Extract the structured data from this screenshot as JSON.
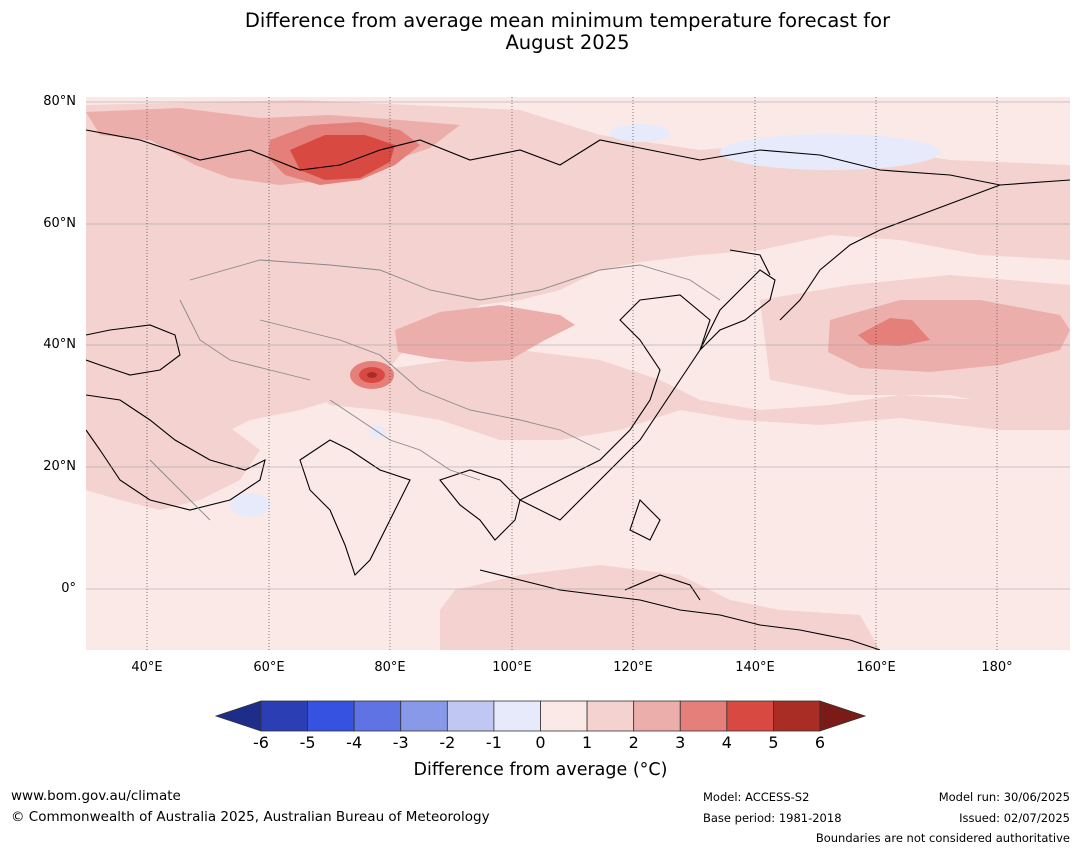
{
  "title_line1": "Difference from average mean minimum temperature forecast for",
  "title_line2": "August 2025",
  "lat_labels": [
    "80°N",
    "60°N",
    "40°N",
    "20°N",
    "0°"
  ],
  "lon_labels": [
    "40°E",
    "60°E",
    "80°E",
    "100°E",
    "120°E",
    "140°E",
    "160°E",
    "180°"
  ],
  "colorbar": {
    "ticks": [
      "-6",
      "-5",
      "-4",
      "-3",
      "-2",
      "-1",
      "0",
      "1",
      "2",
      "3",
      "4",
      "5",
      "6"
    ],
    "colors": [
      "#1f2d8a",
      "#2b3eb3",
      "#3553e0",
      "#5f73e5",
      "#8899ea",
      "#bfc7f2",
      "#e6eafa",
      "#fbe9e8",
      "#f3d2d0",
      "#ebaeab",
      "#e47f79",
      "#d84a41",
      "#a92c25",
      "#7a1b18"
    ],
    "label": "Difference from average (°C)"
  },
  "legend_colors": {
    "land_base": "#fbe9e8",
    "light_warm": "#f3d2d0",
    "mid_warm": "#ebaeab",
    "warm": "#e47f79",
    "hot": "#d84a41",
    "cool": "#e6eafa"
  },
  "footer": {
    "url": "www.bom.gov.au/climate",
    "copyright": "© Commonwealth of Australia 2025, Australian Bureau of Meteorology",
    "model": "Model: ACCESS-S2",
    "base_period": "Base period: 1981-2018",
    "model_run": "Model run: 30/06/2025",
    "issued": "Issued: 02/07/2025",
    "boundaries": "Boundaries are not considered authoritative"
  }
}
